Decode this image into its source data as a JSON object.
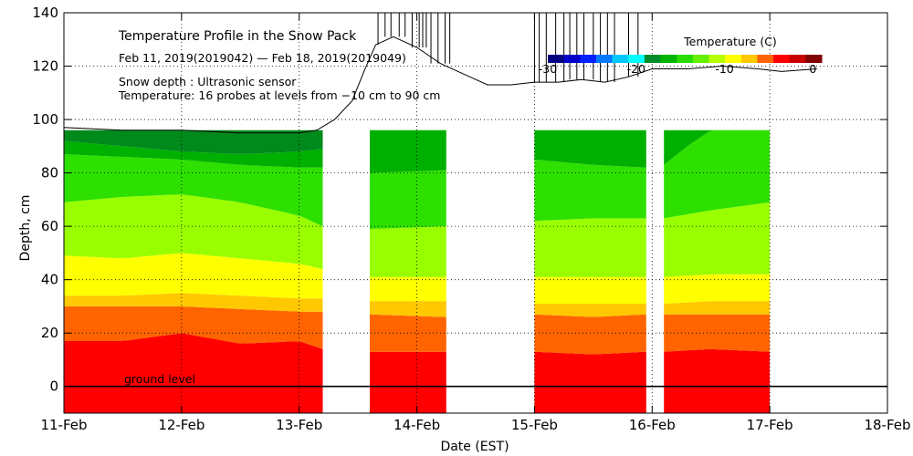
{
  "chart_data": {
    "type": "heatmap",
    "title": "Temperature Profile in the Snow Pack",
    "subtitle": "Feb 11, 2019(2019042) — Feb 18, 2019(2019049)",
    "notes": [
      "Snow depth : Ultrasonic sensor",
      "Temperature: 16 probes at levels from −10 cm to 90 cm"
    ],
    "ground_label": "ground level",
    "xlabel": "Date (EST)",
    "ylabel": "Depth, cm",
    "x_ticks": [
      "11-Feb",
      "12-Feb",
      "13-Feb",
      "14-Feb",
      "15-Feb",
      "16-Feb",
      "17-Feb",
      "18-Feb"
    ],
    "y_ticks": [
      0,
      20,
      40,
      60,
      80,
      100,
      120,
      140
    ],
    "xlim_days": [
      11,
      18
    ],
    "ylim": [
      -10,
      140
    ],
    "grid": true,
    "colorbar": {
      "title": "Temperature (C)",
      "tick_labels": [
        "-30",
        "-20",
        "-10",
        "0"
      ],
      "tick_values": [
        -30,
        -20,
        -10,
        0
      ],
      "range": [
        -30,
        1
      ],
      "colors": [
        "#000080",
        "#0000c8",
        "#0020ff",
        "#0078ff",
        "#00c8ff",
        "#00ffff",
        "#008c28",
        "#00b400",
        "#28dc00",
        "#64f000",
        "#b4ff00",
        "#ffff00",
        "#ffc800",
        "#ff6400",
        "#ff0000",
        "#c80000",
        "#800000"
      ]
    },
    "band_colors": [
      "#ff0000",
      "#ff6400",
      "#ffc800",
      "#ffff00",
      "#99ff00",
      "#2ee000",
      "#00b000",
      "#008a1c"
    ],
    "probe_top_cm": 96,
    "segments": [
      {
        "start": 11.0,
        "end": 13.2,
        "boundaries": [
          {
            "t": [
              11.0,
              11.5,
              12.0,
              12.5,
              13.0,
              13.2
            ],
            "y": [
              17,
              17,
              20,
              16,
              17,
              14
            ]
          },
          {
            "t": [
              11.0,
              11.5,
              12.0,
              12.5,
              13.0,
              13.2
            ],
            "y": [
              30,
              30,
              30,
              29,
              28,
              28
            ]
          },
          {
            "t": [
              11.0,
              11.5,
              12.0,
              12.5,
              13.0,
              13.2
            ],
            "y": [
              34,
              34,
              35,
              34,
              33,
              33
            ]
          },
          {
            "t": [
              11.0,
              11.5,
              12.0,
              12.5,
              13.0,
              13.2
            ],
            "y": [
              49,
              48,
              50,
              48,
              46,
              44
            ]
          },
          {
            "t": [
              11.0,
              11.5,
              12.0,
              12.5,
              13.0,
              13.2
            ],
            "y": [
              69,
              71,
              72,
              69,
              64,
              60
            ]
          },
          {
            "t": [
              11.0,
              11.5,
              12.0,
              12.5,
              13.0,
              13.2
            ],
            "y": [
              87,
              86,
              85,
              83,
              82,
              82
            ]
          },
          {
            "t": [
              11.0,
              11.5,
              12.0,
              12.5,
              13.0,
              13.2
            ],
            "y": [
              92,
              90,
              88,
              87,
              88,
              89
            ]
          }
        ]
      },
      {
        "start": 13.6,
        "end": 14.25,
        "boundaries": [
          {
            "t": [
              13.6,
              14.25
            ],
            "y": [
              13,
              13
            ]
          },
          {
            "t": [
              13.6,
              14.25
            ],
            "y": [
              27,
              26
            ]
          },
          {
            "t": [
              13.6,
              14.25
            ],
            "y": [
              32,
              32
            ]
          },
          {
            "t": [
              13.6,
              14.25
            ],
            "y": [
              41,
              41
            ]
          },
          {
            "t": [
              13.6,
              14.25
            ],
            "y": [
              59,
              60
            ]
          },
          {
            "t": [
              13.6,
              14.25
            ],
            "y": [
              80,
              81
            ]
          },
          {
            "t": [
              13.6,
              14.25
            ],
            "y": [
              96,
              96
            ]
          }
        ]
      },
      {
        "start": 15.0,
        "end": 15.95,
        "boundaries": [
          {
            "t": [
              15.0,
              15.5,
              15.95
            ],
            "y": [
              13,
              12,
              13
            ]
          },
          {
            "t": [
              15.0,
              15.5,
              15.95
            ],
            "y": [
              27,
              26,
              27
            ]
          },
          {
            "t": [
              15.0,
              15.5,
              15.95
            ],
            "y": [
              31,
              31,
              31
            ]
          },
          {
            "t": [
              15.0,
              15.5,
              15.95
            ],
            "y": [
              41,
              41,
              41
            ]
          },
          {
            "t": [
              15.0,
              15.5,
              15.95
            ],
            "y": [
              62,
              63,
              63
            ]
          },
          {
            "t": [
              15.0,
              15.5,
              15.95
            ],
            "y": [
              85,
              83,
              82
            ]
          },
          {
            "t": [
              15.0,
              15.95
            ],
            "y": [
              96,
              96
            ]
          }
        ]
      },
      {
        "start": 16.1,
        "end": 17.0,
        "boundaries": [
          {
            "t": [
              16.1,
              16.5,
              17.0
            ],
            "y": [
              13,
              14,
              13
            ]
          },
          {
            "t": [
              16.1,
              16.5,
              17.0
            ],
            "y": [
              27,
              27,
              27
            ]
          },
          {
            "t": [
              16.1,
              16.5,
              17.0
            ],
            "y": [
              31,
              32,
              32
            ]
          },
          {
            "t": [
              16.1,
              16.5,
              17.0
            ],
            "y": [
              41,
              42,
              42
            ]
          },
          {
            "t": [
              16.1,
              16.5,
              17.0
            ],
            "y": [
              63,
              66,
              69
            ]
          },
          {
            "t": [
              16.1,
              16.3,
              16.5
            ],
            "y": [
              83,
              90,
              96
            ]
          },
          {
            "t": [
              16.1,
              16.3
            ],
            "y": [
              96,
              96
            ]
          }
        ]
      }
    ],
    "snow_depth": {
      "t": [
        11.0,
        11.5,
        12.0,
        12.5,
        13.0,
        13.15,
        13.3,
        13.45,
        13.55,
        13.65,
        13.8,
        14.0,
        14.2,
        14.4,
        14.6,
        14.8,
        15.0,
        15.2,
        15.4,
        15.6,
        15.8,
        16.0,
        16.3,
        16.6,
        16.9,
        17.1,
        17.4
      ],
      "y": [
        97,
        96,
        96,
        95,
        95,
        96,
        100,
        107,
        118,
        128,
        131,
        127,
        121,
        117,
        113,
        113,
        114,
        114,
        115,
        114,
        116,
        119,
        119,
        120,
        119,
        118,
        119
      ]
    },
    "spike_times": [
      13.67,
      13.73,
      13.78,
      13.85,
      13.9,
      13.96,
      14.02,
      14.05,
      14.08,
      14.12,
      14.18,
      14.24,
      14.28,
      15.0,
      15.04,
      15.1,
      15.18,
      15.25,
      15.3,
      15.36,
      15.42,
      15.5,
      15.56,
      15.62,
      15.68,
      15.8,
      15.88
    ]
  }
}
